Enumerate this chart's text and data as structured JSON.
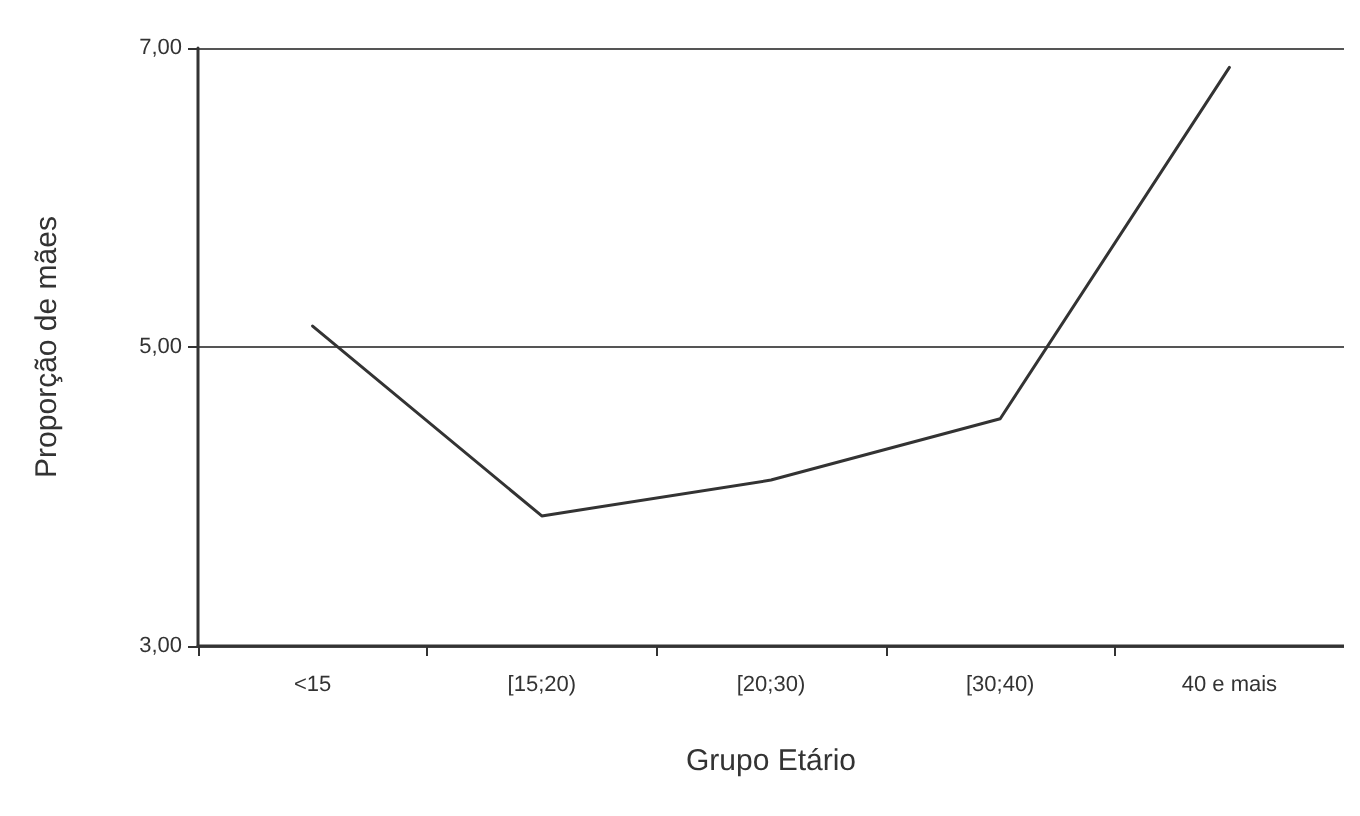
{
  "chart_data": {
    "type": "line",
    "xlabel": "Grupo Etário",
    "ylabel": "Proporção de mães",
    "categories": [
      "<15",
      "[15;20)",
      "[20;30)",
      "[30;40)",
      "40 e mais"
    ],
    "series": [
      {
        "color": "#333333",
        "values": [
          5.14,
          3.87,
          4.11,
          4.52,
          6.87
        ]
      }
    ],
    "ylim": [
      3,
      7
    ],
    "yticks": [
      {
        "value": 3,
        "label": "3,00"
      },
      {
        "value": 5,
        "label": "5,00"
      },
      {
        "value": 7,
        "label": "7,00"
      }
    ],
    "grid": "y",
    "marker": "none",
    "line_style": "solid"
  }
}
